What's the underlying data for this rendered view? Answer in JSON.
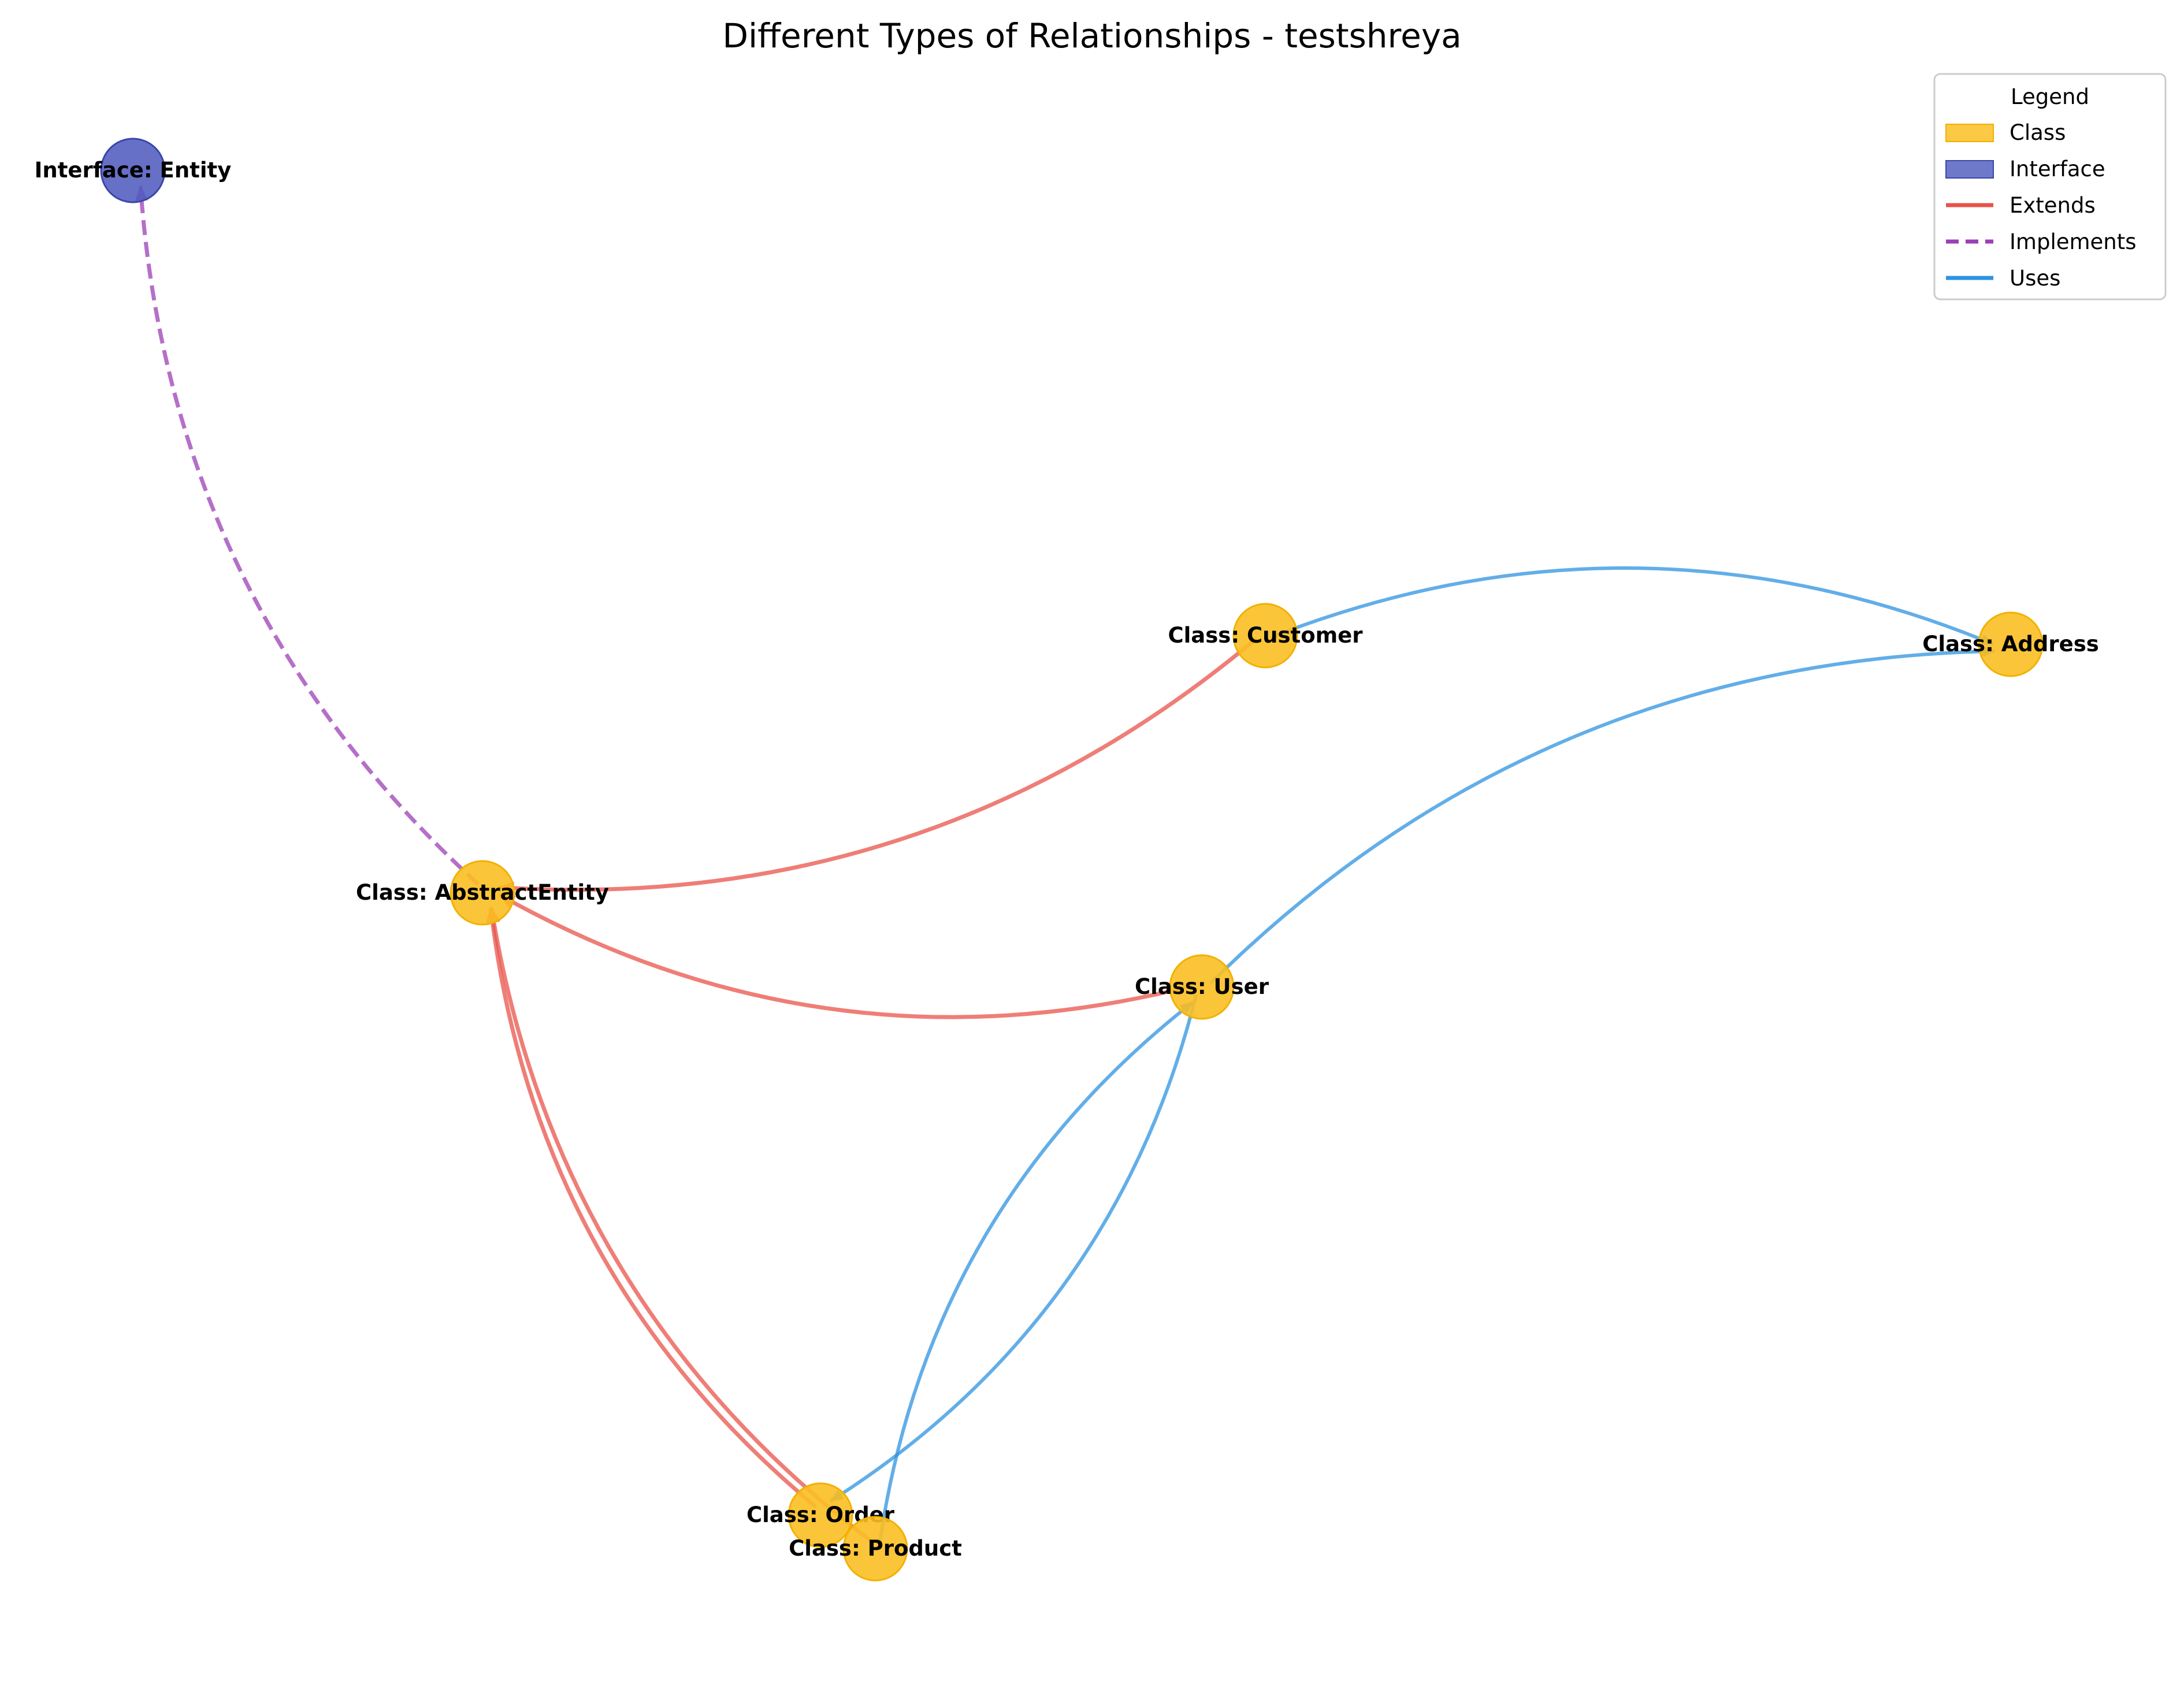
{
  "title": "Different Types of Relationships - testshreya",
  "colors": {
    "class_fill": "#FBBF24",
    "class_stroke": "#F2B100",
    "interface_fill": "#5561C0",
    "interface_stroke": "#3A46A8",
    "extends": "#E8534A",
    "implements": "#9C3FB5",
    "uses": "#2E93E0"
  },
  "nodes": [
    {
      "id": "entity",
      "kind": "interface",
      "label": "Interface: Entity"
    },
    {
      "id": "abstract",
      "kind": "class",
      "label": "Class: AbstractEntity"
    },
    {
      "id": "customer",
      "kind": "class",
      "label": "Class: Customer"
    },
    {
      "id": "address",
      "kind": "class",
      "label": "Class: Address"
    },
    {
      "id": "user",
      "kind": "class",
      "label": "Class: User"
    },
    {
      "id": "order",
      "kind": "class",
      "label": "Class: Order"
    },
    {
      "id": "product",
      "kind": "class",
      "label": "Class: Product"
    }
  ],
  "edges": [
    {
      "from": "abstract",
      "to": "entity",
      "type": "implements"
    },
    {
      "from": "customer",
      "to": "abstract",
      "type": "extends"
    },
    {
      "from": "user",
      "to": "abstract",
      "type": "extends"
    },
    {
      "from": "order",
      "to": "abstract",
      "type": "extends"
    },
    {
      "from": "product",
      "to": "abstract",
      "type": "extends"
    },
    {
      "from": "customer",
      "to": "address",
      "type": "uses"
    },
    {
      "from": "user",
      "to": "address",
      "type": "uses"
    },
    {
      "from": "user",
      "to": "order",
      "type": "uses"
    },
    {
      "from": "product",
      "to": "user",
      "type": "uses"
    }
  ],
  "legend": {
    "title": "Legend",
    "items": [
      {
        "label": "Class",
        "kind": "patch",
        "color_key": "class_fill"
      },
      {
        "label": "Interface",
        "kind": "patch",
        "color_key": "interface_fill"
      },
      {
        "label": "Extends",
        "kind": "line",
        "color_key": "extends"
      },
      {
        "label": "Implements",
        "kind": "dashed",
        "color_key": "implements"
      },
      {
        "label": "Uses",
        "kind": "line",
        "color_key": "uses"
      }
    ]
  }
}
